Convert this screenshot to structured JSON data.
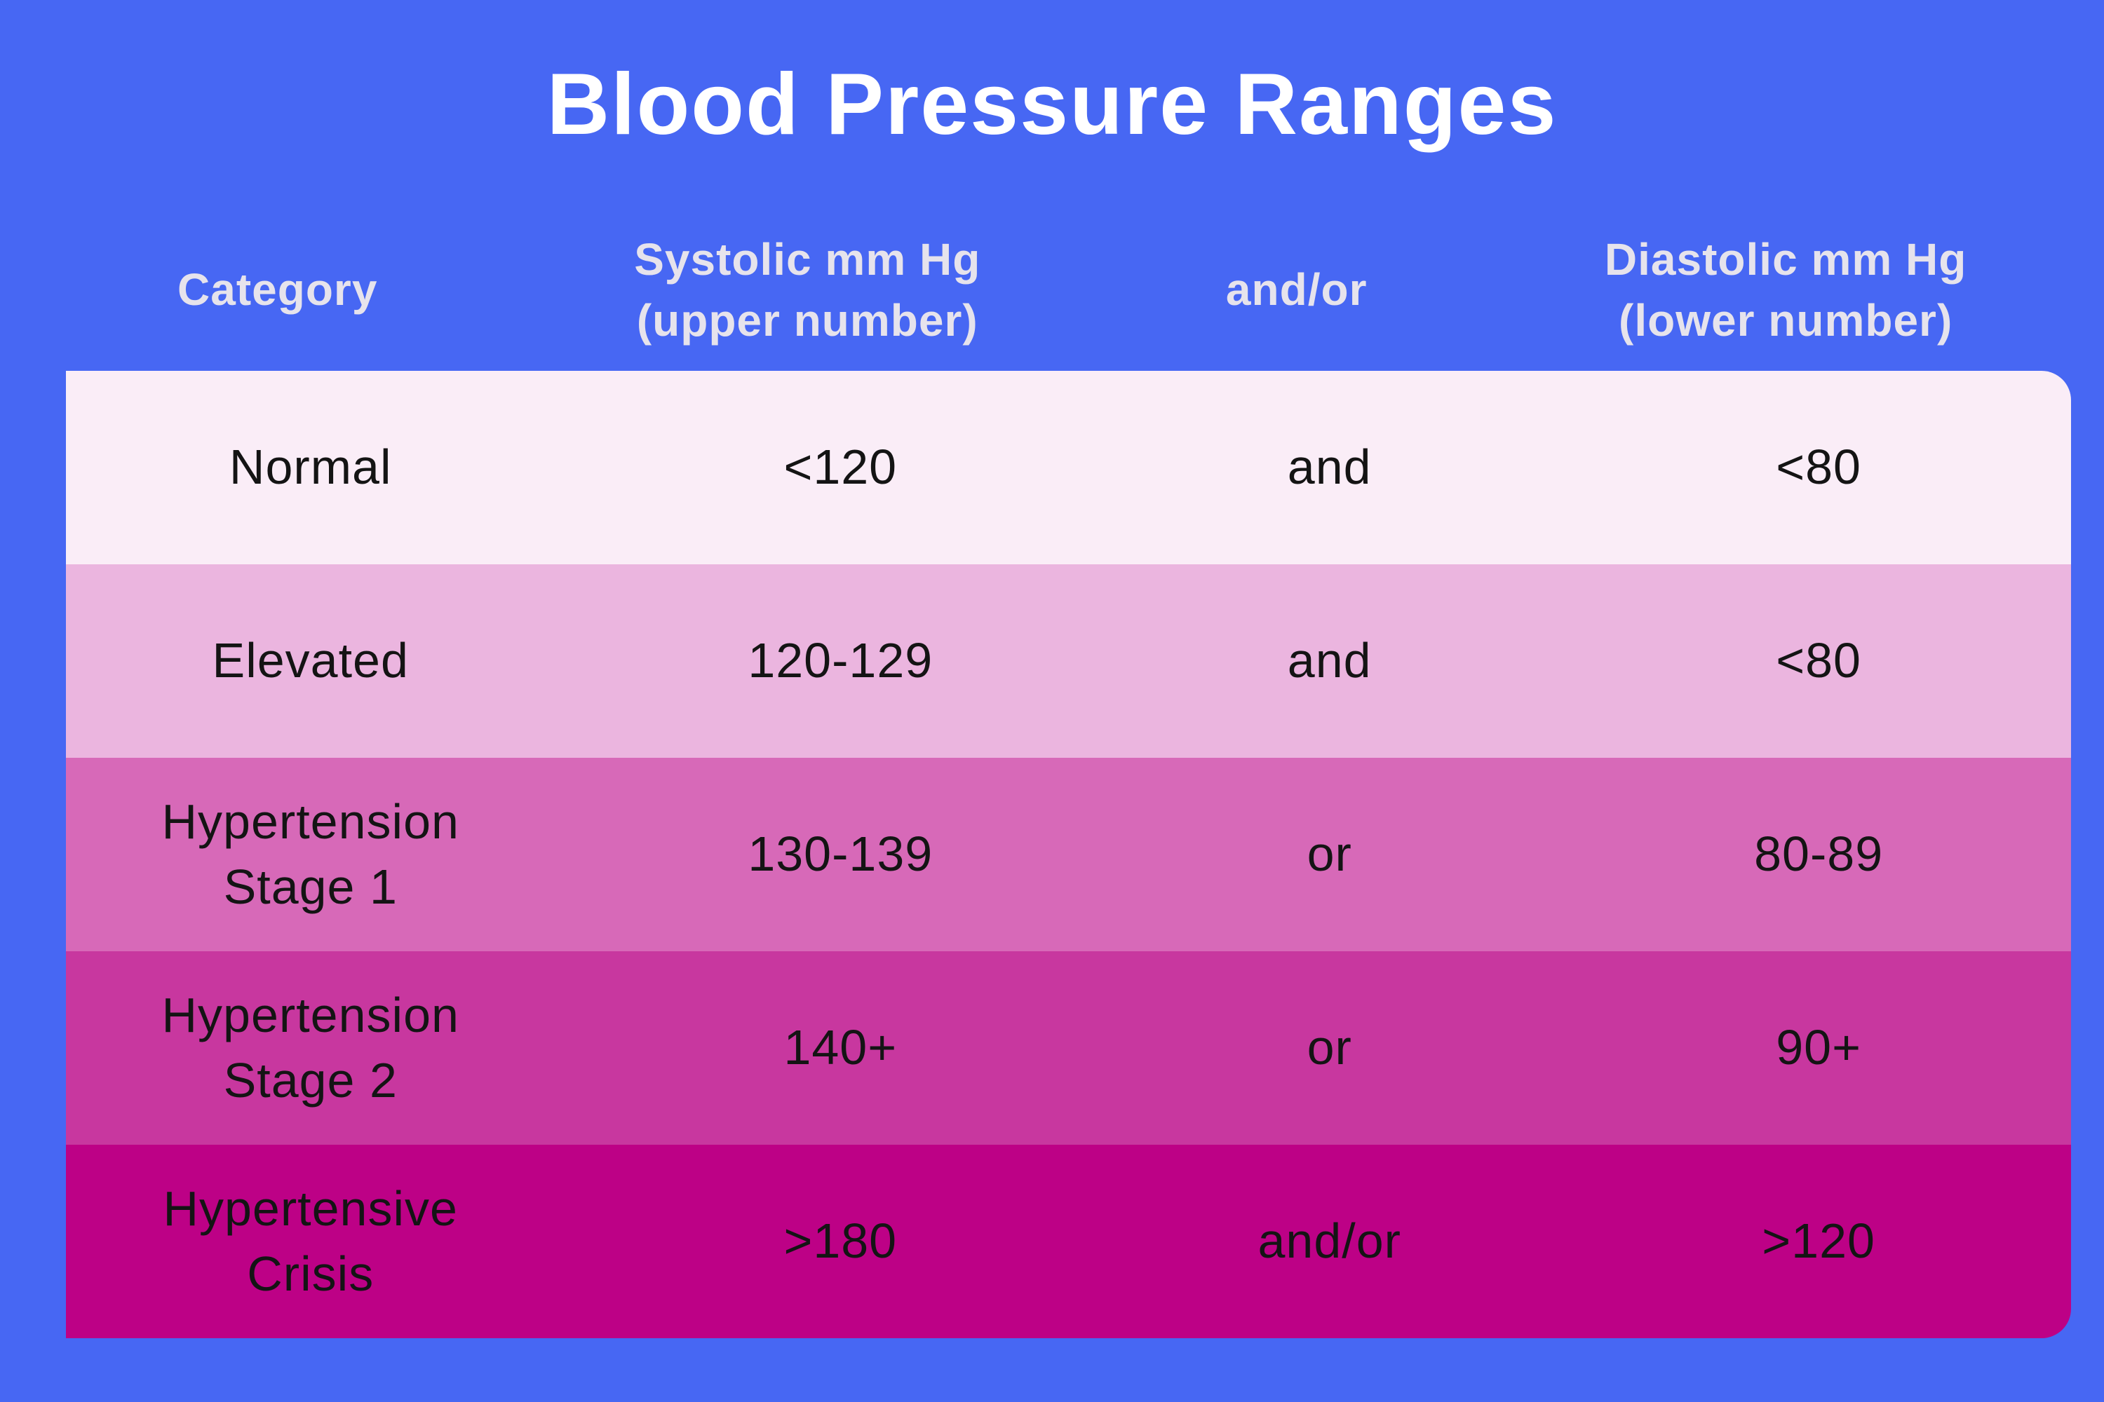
{
  "title": "Blood Pressure Ranges",
  "colors": {
    "background": "#4767F3",
    "title_text": "#FFFFFF",
    "header_text": "#E6E3EC",
    "row_text": "#141414",
    "row_backgrounds": [
      "#FAEDF7",
      "#EBB5DF",
      "#D769B8",
      "#C8379F",
      "#BD0186"
    ]
  },
  "table": {
    "headers": [
      {
        "label": "Category"
      },
      {
        "label": "Systolic mm Hg\n(upper number)"
      },
      {
        "label": "and/or"
      },
      {
        "label": "Diastolic mm Hg\n(lower number)"
      }
    ],
    "rows": [
      {
        "category": "Normal",
        "systolic": "<120",
        "connector": "and",
        "diastolic": "<80",
        "bg": "#FAEDF7",
        "row_style": "background:#FAEDF7"
      },
      {
        "category": "Elevated",
        "systolic": "120-129",
        "connector": "and",
        "diastolic": "<80",
        "bg": "#EBB5DF",
        "row_style": "background:#EBB5DF"
      },
      {
        "category": "Hypertension\nStage 1",
        "systolic": "130-139",
        "connector": "or",
        "diastolic": "80-89",
        "bg": "#D769B8",
        "row_style": "background:#D769B8"
      },
      {
        "category": "Hypertension\nStage 2",
        "systolic": "140+",
        "connector": "or",
        "diastolic": "90+",
        "bg": "#C8379F",
        "row_style": "background:#C8379F"
      },
      {
        "category": "Hypertensive\nCrisis",
        "systolic": ">180",
        "connector": "and/or",
        "diastolic": ">120",
        "bg": "#BD0186",
        "row_style": "background:#BD0186"
      }
    ]
  },
  "chart_data": {
    "type": "table",
    "title": "Blood Pressure Ranges",
    "columns": [
      "Category",
      "Systolic mm Hg (upper number)",
      "and/or",
      "Diastolic mm Hg (lower number)"
    ],
    "rows": [
      [
        "Normal",
        "<120",
        "and",
        "<80"
      ],
      [
        "Elevated",
        "120-129",
        "and",
        "<80"
      ],
      [
        "Hypertension Stage 1",
        "130-139",
        "or",
        "80-89"
      ],
      [
        "Hypertension Stage 2",
        "140+",
        "or",
        "90+"
      ],
      [
        "Hypertensive Crisis",
        ">180",
        "and/or",
        ">120"
      ]
    ],
    "row_colors": [
      "#FAEDF7",
      "#EBB5DF",
      "#D769B8",
      "#C8379F",
      "#BD0186"
    ],
    "layout_hints": {
      "grid": "off",
      "header_on_background": true,
      "color_scale": "light-pink to deep-magenta by severity"
    }
  }
}
